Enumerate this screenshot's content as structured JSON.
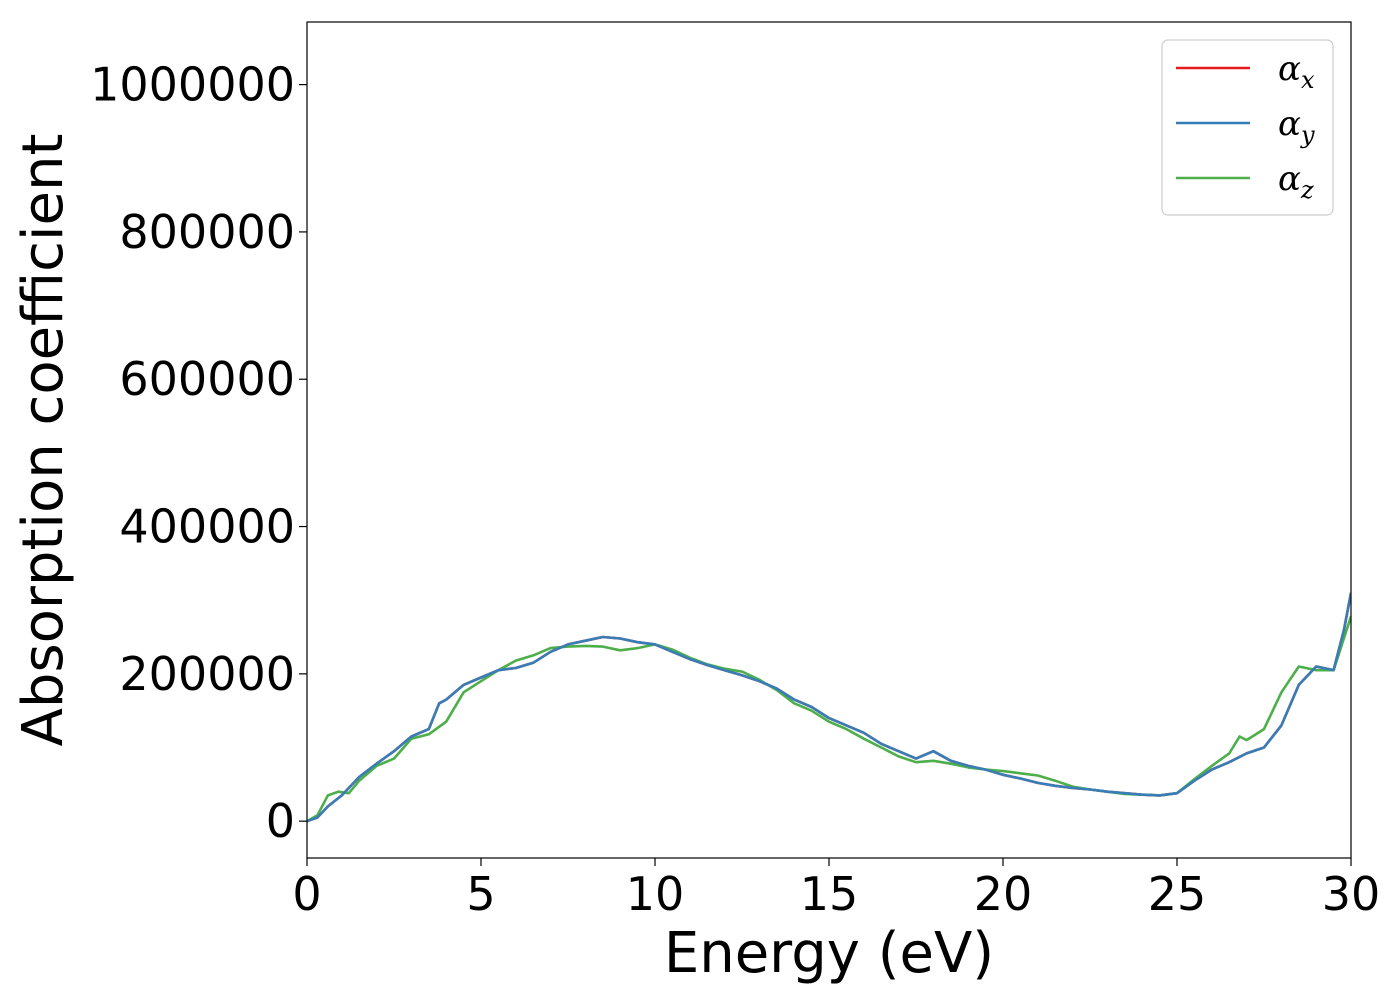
{
  "chart_data": {
    "type": "line",
    "xlabel": "Energy (eV)",
    "ylabel": "Absorption coefficient",
    "xlim": [
      0,
      30
    ],
    "ylim": [
      -50000,
      1085000
    ],
    "xticks": [
      0,
      5,
      10,
      15,
      20,
      25,
      30
    ],
    "yticks": [
      0,
      200000,
      400000,
      600000,
      800000,
      1000000
    ],
    "xtick_labels": [
      "0",
      "5",
      "10",
      "15",
      "20",
      "25",
      "30"
    ],
    "ytick_labels": [
      "0",
      "200000",
      "400000",
      "600000",
      "800000",
      "1000000"
    ],
    "grid": false,
    "legend_position": "top-right",
    "series": [
      {
        "name": "α_x",
        "legend_main": "α",
        "legend_sub": "x",
        "color": "#e41a1c",
        "x": [
          0,
          0.3,
          0.6,
          1,
          1.5,
          2,
          2.5,
          3,
          3.5,
          3.8,
          4,
          4.5,
          5,
          5.5,
          6,
          6.5,
          7,
          7.5,
          8,
          8.5,
          9,
          9.5,
          10,
          10.5,
          11,
          11.5,
          12,
          12.5,
          13,
          13.5,
          14,
          14.5,
          15,
          15.5,
          16,
          16.5,
          17,
          17.5,
          18,
          18.5,
          19,
          19.5,
          20,
          20.5,
          21,
          21.5,
          22,
          22.5,
          23,
          23.5,
          24,
          24.5,
          25,
          25.5,
          26,
          26.5,
          27,
          27.5,
          28,
          28.5,
          29,
          29.5,
          29.8,
          30
        ],
        "values": [
          0,
          5000,
          20000,
          35000,
          60000,
          78000,
          95000,
          115000,
          125000,
          160000,
          165000,
          185000,
          195000,
          205000,
          208000,
          215000,
          230000,
          240000,
          245000,
          250000,
          248000,
          243000,
          240000,
          230000,
          220000,
          212000,
          205000,
          198000,
          190000,
          180000,
          165000,
          155000,
          140000,
          130000,
          120000,
          105000,
          95000,
          85000,
          95000,
          82000,
          75000,
          70000,
          63000,
          58000,
          52000,
          48000,
          45000,
          43000,
          40000,
          38000,
          36000,
          35000,
          38000,
          55000,
          70000,
          80000,
          92000,
          100000,
          130000,
          185000,
          210000,
          205000,
          260000,
          310000
        ]
      },
      {
        "name": "α_y",
        "legend_main": "α",
        "legend_sub": "y",
        "color": "#377eb8",
        "x": [
          0,
          0.3,
          0.6,
          1,
          1.5,
          2,
          2.5,
          3,
          3.5,
          3.8,
          4,
          4.5,
          5,
          5.5,
          6,
          6.5,
          7,
          7.5,
          8,
          8.5,
          9,
          9.5,
          10,
          10.5,
          11,
          11.5,
          12,
          12.5,
          13,
          13.5,
          14,
          14.5,
          15,
          15.5,
          16,
          16.5,
          17,
          17.5,
          18,
          18.5,
          19,
          19.5,
          20,
          20.5,
          21,
          21.5,
          22,
          22.5,
          23,
          23.5,
          24,
          24.5,
          25,
          25.5,
          26,
          26.5,
          27,
          27.5,
          28,
          28.5,
          29,
          29.5,
          29.8,
          30
        ],
        "values": [
          0,
          5000,
          20000,
          35000,
          60000,
          78000,
          95000,
          115000,
          125000,
          160000,
          165000,
          185000,
          195000,
          205000,
          208000,
          215000,
          230000,
          240000,
          245000,
          250000,
          248000,
          243000,
          240000,
          230000,
          220000,
          212000,
          205000,
          198000,
          190000,
          180000,
          165000,
          155000,
          140000,
          130000,
          120000,
          105000,
          95000,
          85000,
          95000,
          82000,
          75000,
          70000,
          63000,
          58000,
          52000,
          48000,
          45000,
          43000,
          40000,
          38000,
          36000,
          35000,
          38000,
          55000,
          70000,
          80000,
          92000,
          100000,
          130000,
          185000,
          210000,
          205000,
          260000,
          310000
        ]
      },
      {
        "name": "α_z",
        "legend_main": "α",
        "legend_sub": "z",
        "color": "#4daf4a",
        "x": [
          0,
          0.3,
          0.6,
          0.9,
          1.2,
          1.5,
          2,
          2.5,
          3,
          3.5,
          4,
          4.5,
          5,
          5.5,
          6,
          6.5,
          7,
          7.5,
          8,
          8.5,
          9,
          9.5,
          10,
          10.5,
          11,
          11.5,
          12,
          12.5,
          13,
          13.5,
          14,
          14.5,
          15,
          15.5,
          16,
          16.5,
          17,
          17.5,
          18,
          18.5,
          19,
          19.5,
          20,
          20.5,
          21,
          21.5,
          22,
          22.5,
          23,
          23.5,
          24,
          24.5,
          25,
          25.5,
          26,
          26.5,
          26.8,
          27,
          27.5,
          28,
          28.5,
          29,
          29.5,
          30
        ],
        "values": [
          0,
          8000,
          35000,
          40000,
          38000,
          55000,
          75000,
          85000,
          112000,
          118000,
          135000,
          175000,
          190000,
          205000,
          218000,
          225000,
          235000,
          237000,
          238000,
          237000,
          232000,
          235000,
          240000,
          233000,
          222000,
          213000,
          207000,
          203000,
          192000,
          178000,
          160000,
          150000,
          135000,
          125000,
          112000,
          100000,
          88000,
          80000,
          82000,
          78000,
          73000,
          70000,
          68000,
          65000,
          62000,
          55000,
          47000,
          43000,
          40000,
          37000,
          36000,
          35000,
          38000,
          57000,
          75000,
          92000,
          115000,
          110000,
          125000,
          175000,
          210000,
          205000,
          205000,
          278000
        ]
      }
    ]
  }
}
